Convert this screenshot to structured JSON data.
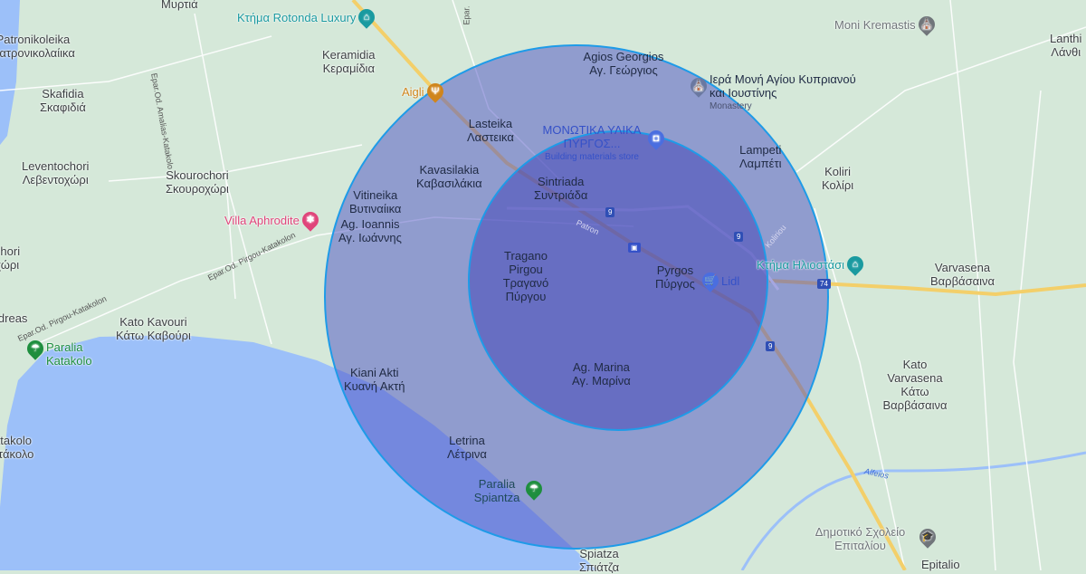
{
  "map": {
    "colors": {
      "land": "#d5e8d9",
      "sea": "#9cc0f9",
      "highway": "#f3cf6a",
      "outer_circle_fill": "#4b4fc4",
      "inner_circle_fill": "#3d3fb5",
      "circle_stroke": "#1e9be8"
    },
    "places": [
      {
        "latin": "",
        "local": "Μυρτιά"
      },
      {
        "latin": "Patronikoleika",
        "local": "Πατρονικολαίικα"
      },
      {
        "latin": "Skafidia",
        "local": "Σκαφιδιά"
      },
      {
        "latin": "Leventochori",
        "local": "Λεβεντοχώρι"
      },
      {
        "latin": "Skourochori",
        "local": "Σκουροχώρι"
      },
      {
        "latin": "Keramidia",
        "local": "Κεραμίδια"
      },
      {
        "latin": "Lasteika",
        "local": "Λαστεικα"
      },
      {
        "latin": "Kavasilakia",
        "local": "Καβασιλάκια"
      },
      {
        "latin": "Vitineika",
        "local": "Βυτιναίικα"
      },
      {
        "latin": "Ag. Ioannis",
        "local": "Αγ. Ιωάννης"
      },
      {
        "latin": "Agios Georgios",
        "local": "Αγ. Γεώργιος"
      },
      {
        "latin": "Sintriada",
        "local": "Συντριάδα"
      },
      {
        "latin": "Tragano Pirgou",
        "local": "Τραγανό Πύργου"
      },
      {
        "latin": "Pyrgos",
        "local": "Πύργος"
      },
      {
        "latin": "Lampeti",
        "local": "Λαμπέτι"
      },
      {
        "latin": "Koliri",
        "local": "Κολίρι"
      },
      {
        "latin": "Ag. Marina",
        "local": "Αγ. Μαρίνα"
      },
      {
        "latin": "Kato Kavouri",
        "local": "Κάτω Καβούρι"
      },
      {
        "latin": "Kiani Akti",
        "local": "Κυανή Ακτή"
      },
      {
        "latin": "Letrina",
        "local": "Λέτρινα"
      },
      {
        "latin": "Spiatza",
        "local": "Σπιάτζα"
      },
      {
        "latin": "Varvasena",
        "local": "Βαρβάσαινα"
      },
      {
        "latin": "Kato Varvasena",
        "local": "Κάτω Βαρβάσαινα"
      },
      {
        "latin": "Lanthi",
        "local": "Λάνθι"
      },
      {
        "latin": "Epitalio",
        "local": ""
      },
      {
        "latin": "Katakolo",
        "local": "Κατάκολο"
      },
      {
        "latin": "Kochori",
        "local": "Κοχώρι"
      },
      {
        "latin": "Andreas",
        "local": ""
      }
    ],
    "pois": [
      {
        "name": "Κτήμα Rotonda Luxury",
        "icon": "lodging-icon",
        "color": "#1a9aa0"
      },
      {
        "name": "Aigli",
        "icon": "restaurant-icon",
        "color": "#d0851c"
      },
      {
        "name": "Villa Aphrodite",
        "icon": "resort-icon",
        "color": "#e0447a"
      },
      {
        "name": "Moni Kremastis",
        "icon": "monastery-icon",
        "color": "#70757a"
      },
      {
        "name": "Ιερά Μονή Αγίου Κυπριανού και Ιουστίνης",
        "sub": "Monastery",
        "icon": "monastery-icon",
        "color": "#70757a"
      },
      {
        "name": "ΜΟΝΩΤΙΚΑ ΥΛΙΚΑ ΠΥΡΓΟΣ...",
        "sub": "Building materials store",
        "icon": "shopping-icon",
        "color": "#4a6ee0"
      },
      {
        "name": "Lidl",
        "icon": "cart-icon",
        "color": "#4a6ee0"
      },
      {
        "name": "Κτήμα Ηλιοστάσι",
        "icon": "lodging-icon",
        "color": "#1a9aa0"
      },
      {
        "name": "Paralia Katakolo",
        "icon": "beach-icon",
        "color": "#1e8e3e"
      },
      {
        "name": "Paralia Spiantza",
        "icon": "beach-icon",
        "color": "#1e8e3e"
      },
      {
        "name": "Δημοτικό Σχολείο Επιταλίου",
        "icon": "school-icon",
        "color": "#70757a"
      }
    ],
    "roads": [
      "Epar.Od. Amalias-Katakolo",
      "Epar.Od. Pirgou-Katakolon",
      "Epar.Od. Pirgou-Katakolon",
      "Patron",
      "Koliriou",
      "Alfeios",
      "Epar."
    ],
    "shields": [
      "9",
      "9",
      "9",
      "9",
      "74"
    ]
  }
}
